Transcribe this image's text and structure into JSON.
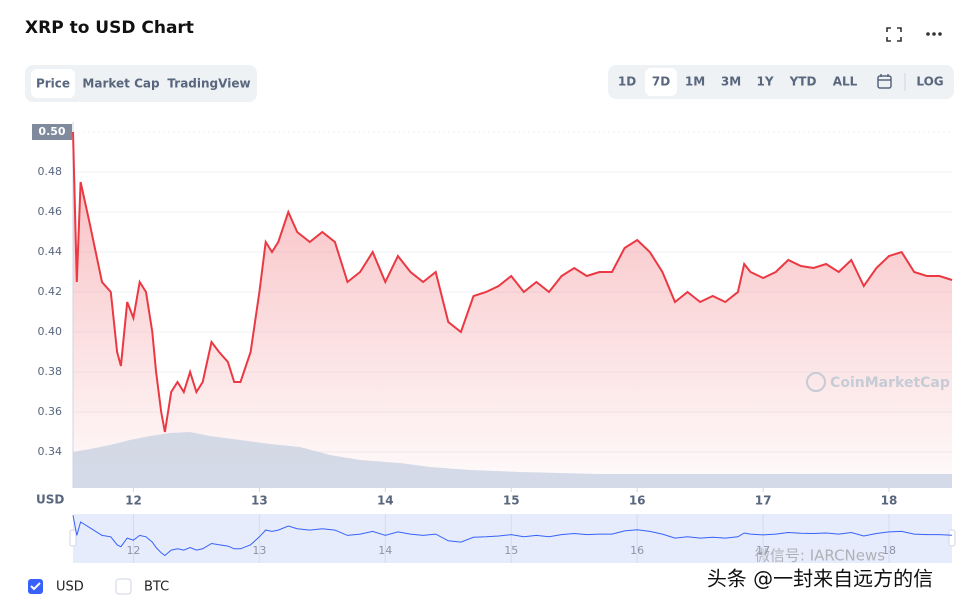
{
  "title": "XRP to USD Chart",
  "tabs": [
    "Price",
    "Market Cap",
    "TradingView"
  ],
  "active_tab": 0,
  "ranges": [
    "1D",
    "7D",
    "1M",
    "3M",
    "1Y",
    "YTD",
    "ALL"
  ],
  "active_range": 1,
  "log_button": "LOG",
  "unchecked_series": [
    "BTC"
  ],
  "watermarks": [
    "CoinMarketCap",
    "头条 @一封来自远方的信",
    "微信号: IARCNews"
  ],
  "chart_data": {
    "type": "line",
    "y_axis_label": "USD",
    "x": [
      11.52,
      11.55,
      11.58,
      11.65,
      11.7,
      11.75,
      11.82,
      11.87,
      11.9,
      11.95,
      12.0,
      12.05,
      12.1,
      12.15,
      12.18,
      12.22,
      12.25,
      12.3,
      12.35,
      12.4,
      12.45,
      12.5,
      12.55,
      12.62,
      12.68,
      12.75,
      12.8,
      12.85,
      12.93,
      13.0,
      13.05,
      13.1,
      13.15,
      13.23,
      13.3,
      13.4,
      13.5,
      13.6,
      13.7,
      13.8,
      13.9,
      14.0,
      14.1,
      14.2,
      14.3,
      14.4,
      14.5,
      14.6,
      14.7,
      14.8,
      14.9,
      15.0,
      15.1,
      15.2,
      15.3,
      15.4,
      15.5,
      15.6,
      15.7,
      15.8,
      15.9,
      16.0,
      16.1,
      16.2,
      16.3,
      16.4,
      16.5,
      16.6,
      16.7,
      16.8,
      16.85,
      16.9,
      17.0,
      17.1,
      17.2,
      17.3,
      17.4,
      17.5,
      17.6,
      17.7,
      17.8,
      17.9,
      18.0,
      18.1,
      18.2,
      18.3,
      18.4,
      18.5
    ],
    "series": [
      {
        "name": "USD",
        "color": "#ea3943",
        "values": [
          0.5,
          0.425,
          0.475,
          0.455,
          0.44,
          0.425,
          0.42,
          0.39,
          0.383,
          0.415,
          0.407,
          0.425,
          0.42,
          0.4,
          0.38,
          0.36,
          0.35,
          0.37,
          0.375,
          0.37,
          0.38,
          0.37,
          0.375,
          0.395,
          0.39,
          0.385,
          0.375,
          0.375,
          0.39,
          0.42,
          0.445,
          0.44,
          0.445,
          0.46,
          0.45,
          0.445,
          0.45,
          0.445,
          0.425,
          0.43,
          0.44,
          0.425,
          0.438,
          0.43,
          0.425,
          0.43,
          0.405,
          0.4,
          0.418,
          0.42,
          0.423,
          0.428,
          0.42,
          0.425,
          0.42,
          0.428,
          0.432,
          0.428,
          0.43,
          0.43,
          0.442,
          0.446,
          0.44,
          0.43,
          0.415,
          0.42,
          0.415,
          0.418,
          0.415,
          0.42,
          0.434,
          0.43,
          0.427,
          0.43,
          0.436,
          0.433,
          0.432,
          0.434,
          0.43,
          0.436,
          0.423,
          0.432,
          0.438,
          0.44,
          0.43,
          0.428,
          0.428,
          0.426
        ]
      }
    ],
    "price_tag": {
      "value": 0.5,
      "label": "0.50"
    },
    "xlim": [
      11.52,
      18.5
    ],
    "xticks": [
      12,
      13,
      14,
      15,
      16,
      17,
      18
    ],
    "ylim": [
      0.322,
      0.505
    ],
    "yticks": [
      0.34,
      0.36,
      0.38,
      {
        "value": 0.4,
        "label": "0.40"
      },
      0.42,
      0.44,
      0.46,
      0.48,
      {
        "value": 0.5,
        "label": "0.50"
      }
    ],
    "grid": true
  }
}
